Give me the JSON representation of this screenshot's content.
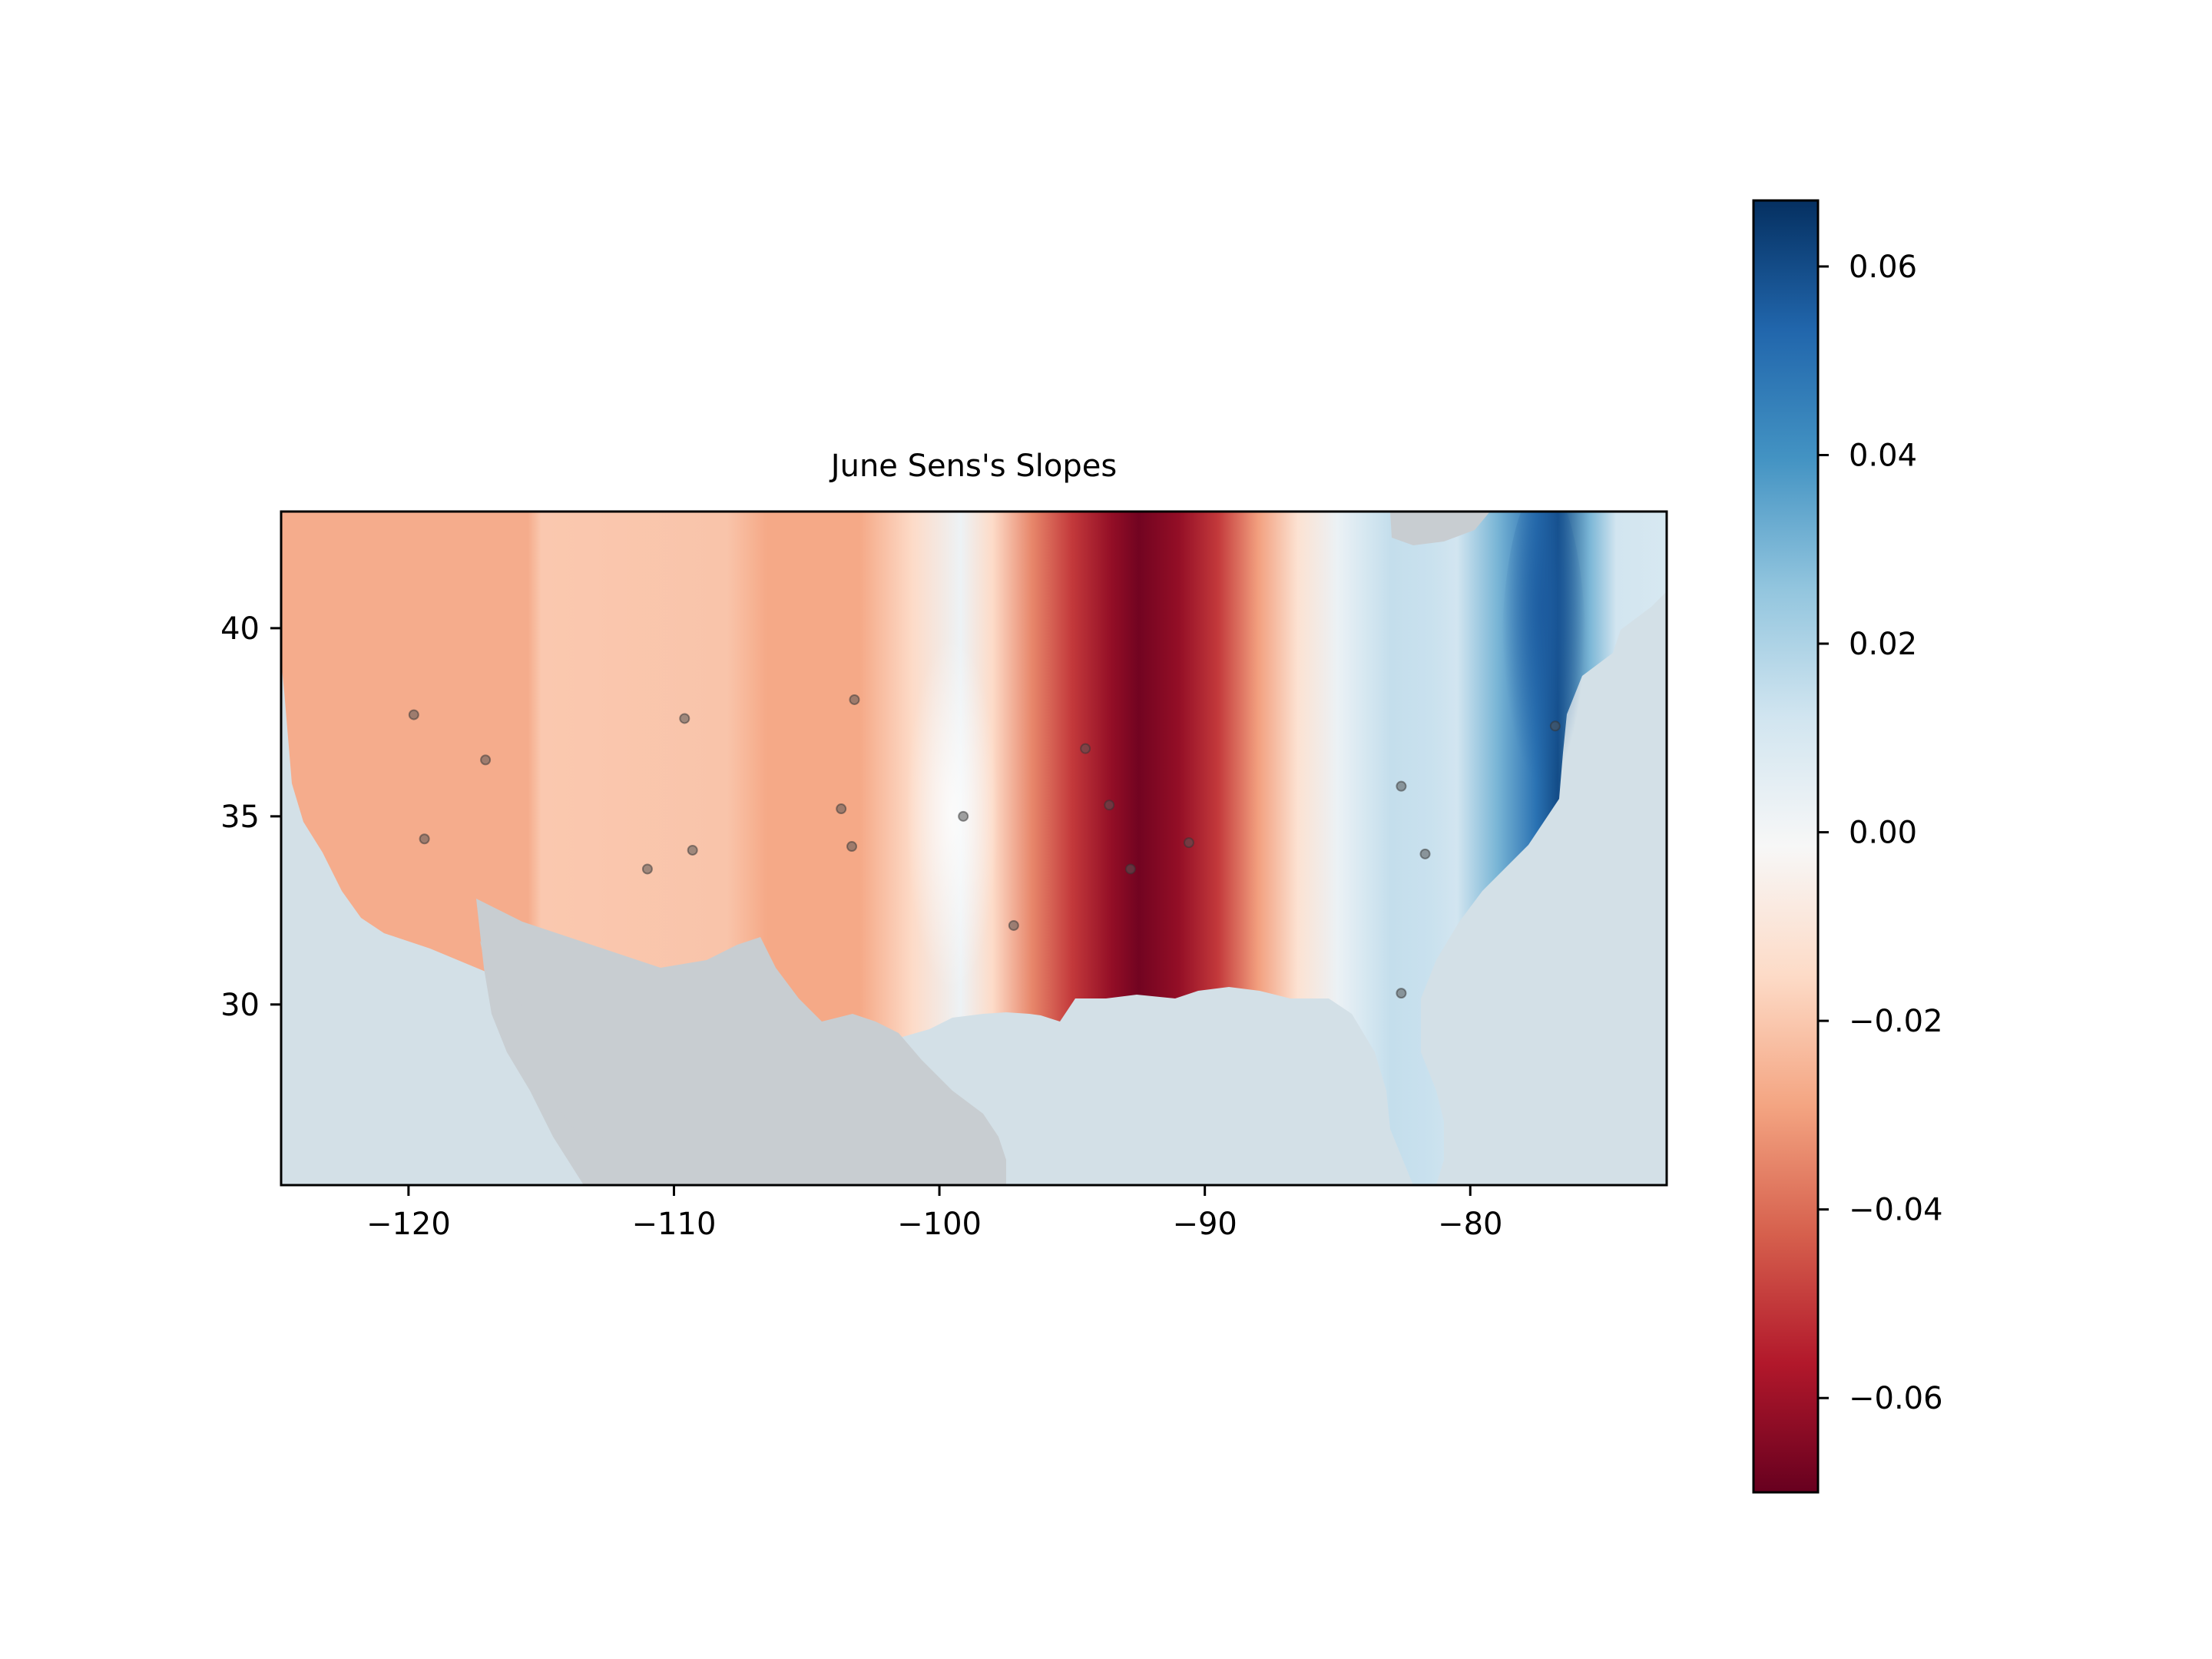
{
  "title": "June Sens's Slopes",
  "map": {
    "lon_range": [
      -124.8,
      -72.6
    ],
    "lat_range": [
      25.2,
      43.1
    ],
    "x_ticks": [
      {
        "value": -120,
        "label": "−120"
      },
      {
        "value": -110,
        "label": "−110"
      },
      {
        "value": -100,
        "label": "−100"
      },
      {
        "value": -90,
        "label": "−90"
      },
      {
        "value": -80,
        "label": "−80"
      }
    ],
    "y_ticks": [
      {
        "value": 30,
        "label": "30"
      },
      {
        "value": 35,
        "label": "35"
      },
      {
        "value": 40,
        "label": "40"
      }
    ],
    "ocean_color": "#d3e0e7",
    "land_color": "#c8cdd1",
    "stations": [
      [
        -119.8,
        37.7
      ],
      [
        -117.1,
        36.5
      ],
      [
        -119.4,
        34.4
      ],
      [
        -109.6,
        37.6
      ],
      [
        -111.0,
        33.6
      ],
      [
        -109.3,
        34.1
      ],
      [
        -103.2,
        38.1
      ],
      [
        -103.7,
        35.2
      ],
      [
        -103.3,
        34.2
      ],
      [
        -99.1,
        35.0
      ],
      [
        -97.2,
        32.1
      ],
      [
        -94.5,
        36.8
      ],
      [
        -93.6,
        35.3
      ],
      [
        -92.8,
        33.6
      ],
      [
        -90.6,
        34.3
      ],
      [
        -82.6,
        35.8
      ],
      [
        -81.7,
        34.0
      ],
      [
        -82.6,
        30.3
      ],
      [
        -76.8,
        37.4
      ]
    ]
  },
  "chart_data": {
    "type": "heatmap",
    "title": "June Sens's Slopes",
    "x_range": [
      -124.8,
      -72.6
    ],
    "y_range": [
      25.2,
      43.1
    ],
    "slope_profile_by_longitude": [
      [
        -124.8,
        -0.027
      ],
      [
        -115.5,
        -0.027
      ],
      [
        -115.0,
        -0.02
      ],
      [
        -108.0,
        -0.021
      ],
      [
        -106.5,
        -0.028
      ],
      [
        -103.0,
        -0.028
      ],
      [
        -101.0,
        -0.015
      ],
      [
        -99.2,
        0.002
      ],
      [
        -98.0,
        -0.015
      ],
      [
        -96.5,
        -0.035
      ],
      [
        -95.0,
        -0.05
      ],
      [
        -93.5,
        -0.062
      ],
      [
        -92.5,
        -0.068
      ],
      [
        -91.0,
        -0.062
      ],
      [
        -89.5,
        -0.05
      ],
      [
        -88.0,
        -0.03
      ],
      [
        -86.5,
        -0.012
      ],
      [
        -85.0,
        0.003
      ],
      [
        -84.0,
        0.01
      ],
      [
        -83.0,
        0.015
      ],
      [
        -81.5,
        0.014
      ],
      [
        -80.5,
        0.012
      ],
      [
        -79.0,
        0.03
      ],
      [
        -77.5,
        0.05
      ],
      [
        -76.7,
        0.06
      ],
      [
        -75.5,
        0.03
      ],
      [
        -74.5,
        0.012
      ],
      [
        -72.6,
        0.01
      ]
    ],
    "colorbar": {
      "vmin": -0.07,
      "vmax": 0.067,
      "ticks": [
        -0.06,
        -0.04,
        -0.02,
        0.0,
        0.02,
        0.04,
        0.06
      ],
      "tick_labels": [
        "−0.06",
        "−0.04",
        "−0.02",
        "0.00",
        "0.02",
        "0.04",
        "0.06"
      ],
      "colormap": "RdBu",
      "colors": [
        "#67001f",
        "#b2182b",
        "#d6604d",
        "#f4a582",
        "#fddbc7",
        "#f7f7f7",
        "#d1e5f0",
        "#92c5de",
        "#4393c3",
        "#2166ac",
        "#053061"
      ]
    }
  }
}
